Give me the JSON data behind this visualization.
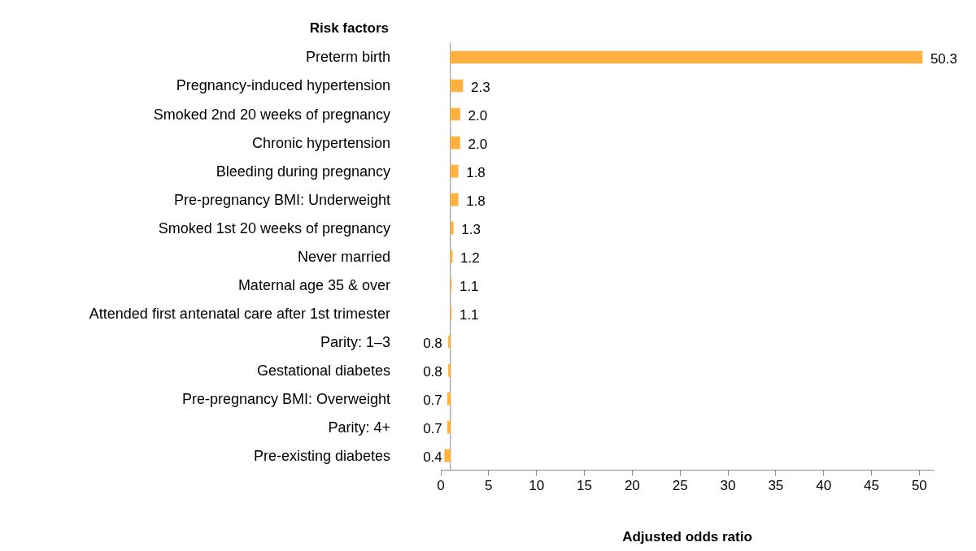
{
  "chart_data": {
    "type": "bar",
    "orientation": "horizontal",
    "ylabel": "Risk factors",
    "xlabel": "Adjusted odds ratio",
    "categories": [
      "Preterm birth",
      "Pregnancy-induced hypertension",
      "Smoked 2nd 20 weeks of pregnancy",
      "Chronic hypertension",
      "Bleeding during pregnancy",
      "Pre-pregnancy BMI: Underweight",
      "Smoked 1st 20 weeks of pregnancy",
      "Never married",
      "Maternal age 35 & over",
      "Attended first antenatal care after 1st trimester",
      "Parity: 1–3",
      "Gestational diabetes",
      "Pre-pregnancy BMI: Overweight",
      "Parity: 4+",
      "Pre-existing diabetes"
    ],
    "base": [
      1,
      1,
      1,
      1,
      1,
      1,
      1,
      1,
      1,
      1,
      1,
      1,
      1,
      1,
      1
    ],
    "values": [
      49.3,
      1.3,
      1.0,
      1.0,
      0.8,
      0.8,
      0.3,
      0.2,
      0.1,
      0.1,
      -0.2,
      -0.2,
      -0.3,
      -0.3,
      -0.6
    ],
    "value_labels": [
      "50.3",
      "2.3",
      "2.0",
      "2.0",
      "1.8",
      "1.8",
      "1.3",
      "1.2",
      "1.1",
      "1.1",
      "0.8",
      "0.8",
      "0.7",
      "0.7",
      "0.4"
    ],
    "color": "#ffb142",
    "xlim": [
      0,
      51.5
    ],
    "xticks": [
      0,
      5,
      10,
      15,
      20,
      25,
      30,
      35,
      40,
      45,
      50
    ],
    "ref_lines": [
      {
        "axis": "x",
        "value": 1,
        "color": "#888888"
      }
    ],
    "grid": false,
    "legend": false
  }
}
